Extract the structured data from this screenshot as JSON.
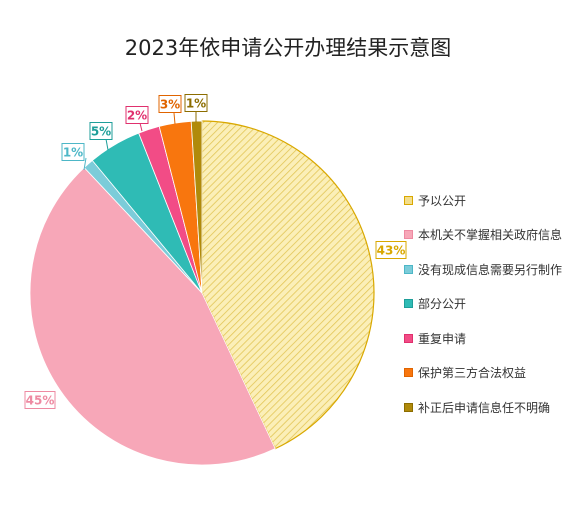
{
  "chart_data": {
    "type": "pie",
    "title": "2023年依申请公开办理结果示意图",
    "legend_position": "right",
    "slices": [
      {
        "label": "予以公开",
        "value": 43,
        "display": "43%",
        "color": "#F3DE8C",
        "edge": "#D9A800"
      },
      {
        "label": "本机关不掌握相关政府信息",
        "value": 45,
        "display": "45%",
        "color": "#F7A7B8",
        "edge": "#EE8AA2"
      },
      {
        "label": "没有现成信息需要另行制作",
        "value": 1,
        "display": "1%",
        "color": "#7CCCD9",
        "edge": "#4DB7C7"
      },
      {
        "label": "部分公开",
        "value": 5,
        "display": "5%",
        "color": "#2FBBB5",
        "edge": "#1E9E99"
      },
      {
        "label": "重复申请",
        "value": 2,
        "display": "2%",
        "color": "#F24C86",
        "edge": "#E0306E"
      },
      {
        "label": "保护第三方合法权益",
        "value": 3,
        "display": "3%",
        "color": "#F8760E",
        "edge": "#E06400"
      },
      {
        "label": "补正后申请信息任不明确",
        "value": 1,
        "display": "1%",
        "color": "#B08A0A",
        "edge": "#8C6D00"
      }
    ]
  }
}
